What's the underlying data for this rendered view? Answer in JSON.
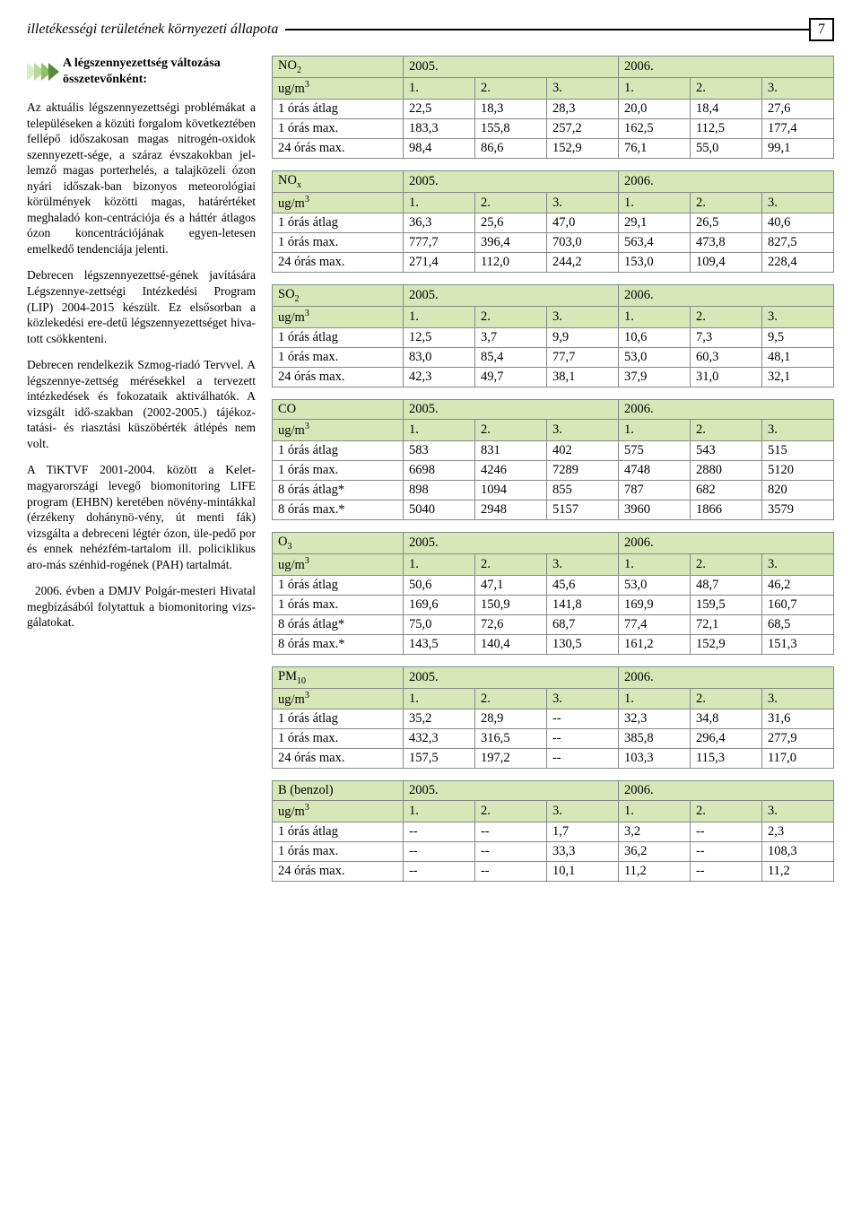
{
  "header": {
    "title": "illetékességi területének környezeti állapota",
    "page_num": "7"
  },
  "intro": {
    "title": "A légszennyezettség változása összetevőnként:"
  },
  "paragraphs": {
    "p1": "Az aktuális légszennyezettségi problémákat a településeken a közúti forgalom következtében fellépő időszakosan magas nitrogén-oxidok szennyezett-sége, a száraz évszakokban jel-lemző magas porterhelés, a talajközeli ózon nyári időszak-ban bizonyos meteorológiai körülmények közötti magas, határértéket meghaladó kon-centrációja és a háttér átlagos ózon koncentrációjának egyen-letesen emelkedő tendenciája jelenti.",
    "p2": "Debrecen légszennyezettsé-gének javítására Légszennye-zettségi Intézkedési Program (LIP) 2004-2015 készült. Ez elsősorban a közlekedési ere-detű légszennyezettséget hiva-tott csökkenteni.",
    "p3": "Debrecen rendelkezik Szmog-riadó Tervvel. A légszennye-zettség mérésekkel a tervezett intézkedések és fokozataik aktiválhatók. A vizsgált idő-szakban (2002-2005.) tájékoz-tatási- és riasztási küszöbérték átlépés nem volt.",
    "p4": "A TiKTVF 2001-2004. között a Kelet-magyarországi levegő biomonitoring LIFE program (EHBN) keretében növény-mintákkal (érzékeny dohánynö-vény, út menti fák) vizsgálta a debreceni légtér ózon, üle-pedő por és ennek nehézfém-tartalom ill. policiklikus aro-más szénhid-rogének (PAH) tartalmát.",
    "p5": "2006. évben a DMJV Polgár-mesteri Hivatal megbízásából folytattuk a biomonitoring vizs-gálatokat."
  },
  "row_labels": {
    "ugm3": "ug/m",
    "oras_atlag": "1 órás átlag",
    "oras_max": "1 órás max.",
    "oras24_max": "24 órás max.",
    "oras8_atlag": "8 órás átlag*",
    "oras8_max": "8 órás max.*"
  },
  "years": {
    "y1": "2005.",
    "y2": "2006."
  },
  "cols": {
    "c1": "1.",
    "c2": "2.",
    "c3": "3."
  },
  "tables": {
    "NO2": {
      "label": "NO",
      "sub": "2",
      "r1": [
        "22,5",
        "18,3",
        "28,3",
        "20,0",
        "18,4",
        "27,6"
      ],
      "r2": [
        "183,3",
        "155,8",
        "257,2",
        "162,5",
        "112,5",
        "177,4"
      ],
      "r3": [
        "98,4",
        "86,6",
        "152,9",
        "76,1",
        "55,0",
        "99,1"
      ]
    },
    "NOx": {
      "label": "NO",
      "sub": "x",
      "r1": [
        "36,3",
        "25,6",
        "47,0",
        "29,1",
        "26,5",
        "40,6"
      ],
      "r2": [
        "777,7",
        "396,4",
        "703,0",
        "563,4",
        "473,8",
        "827,5"
      ],
      "r3": [
        "271,4",
        "112,0",
        "244,2",
        "153,0",
        "109,4",
        "228,4"
      ]
    },
    "SO2": {
      "label": "SO",
      "sub": "2",
      "r1": [
        "12,5",
        "3,7",
        "9,9",
        "10,6",
        "7,3",
        "9,5"
      ],
      "r2": [
        "83,0",
        "85,4",
        "77,7",
        "53,0",
        "60,3",
        "48,1"
      ],
      "r3": [
        "42,3",
        "49,7",
        "38,1",
        "37,9",
        "31,0",
        "32,1"
      ]
    },
    "CO": {
      "label": "CO",
      "sub": "",
      "r1": [
        "583",
        "831",
        "402",
        "575",
        "543",
        "515"
      ],
      "r2": [
        "6698",
        "4246",
        "7289",
        "4748",
        "2880",
        "5120"
      ],
      "r3": [
        "898",
        "1094",
        "855",
        "787",
        "682",
        "820"
      ],
      "r4": [
        "5040",
        "2948",
        "5157",
        "3960",
        "1866",
        "3579"
      ]
    },
    "O3": {
      "label": "O",
      "sub": "3",
      "r1": [
        "50,6",
        "47,1",
        "45,6",
        "53,0",
        "48,7",
        "46,2"
      ],
      "r2": [
        "169,6",
        "150,9",
        "141,8",
        "169,9",
        "159,5",
        "160,7"
      ],
      "r3": [
        "75,0",
        "72,6",
        "68,7",
        "77,4",
        "72,1",
        "68,5"
      ],
      "r4": [
        "143,5",
        "140,4",
        "130,5",
        "161,2",
        "152,9",
        "151,3"
      ]
    },
    "PM10": {
      "label": "PM",
      "sub": "10",
      "r1": [
        "35,2",
        "28,9",
        "--",
        "32,3",
        "34,8",
        "31,6"
      ],
      "r2": [
        "432,3",
        "316,5",
        "--",
        "385,8",
        "296,4",
        "277,9"
      ],
      "r3": [
        "157,5",
        "197,2",
        "--",
        "103,3",
        "115,3",
        "117,0"
      ]
    },
    "B": {
      "label": "B (benzol)",
      "sub": "",
      "r1": [
        "--",
        "--",
        "1,7",
        "3,2",
        "--",
        "2,3"
      ],
      "r2": [
        "--",
        "--",
        "33,3",
        "36,2",
        "--",
        "108,3"
      ],
      "r3": [
        "--",
        "--",
        "10,1",
        "11,2",
        "--",
        "11,2"
      ]
    }
  },
  "style": {
    "header_bg": "#d7e7b8",
    "border_color": "#888888",
    "font_size_table": 14.5,
    "font_size_body": 13.5
  }
}
